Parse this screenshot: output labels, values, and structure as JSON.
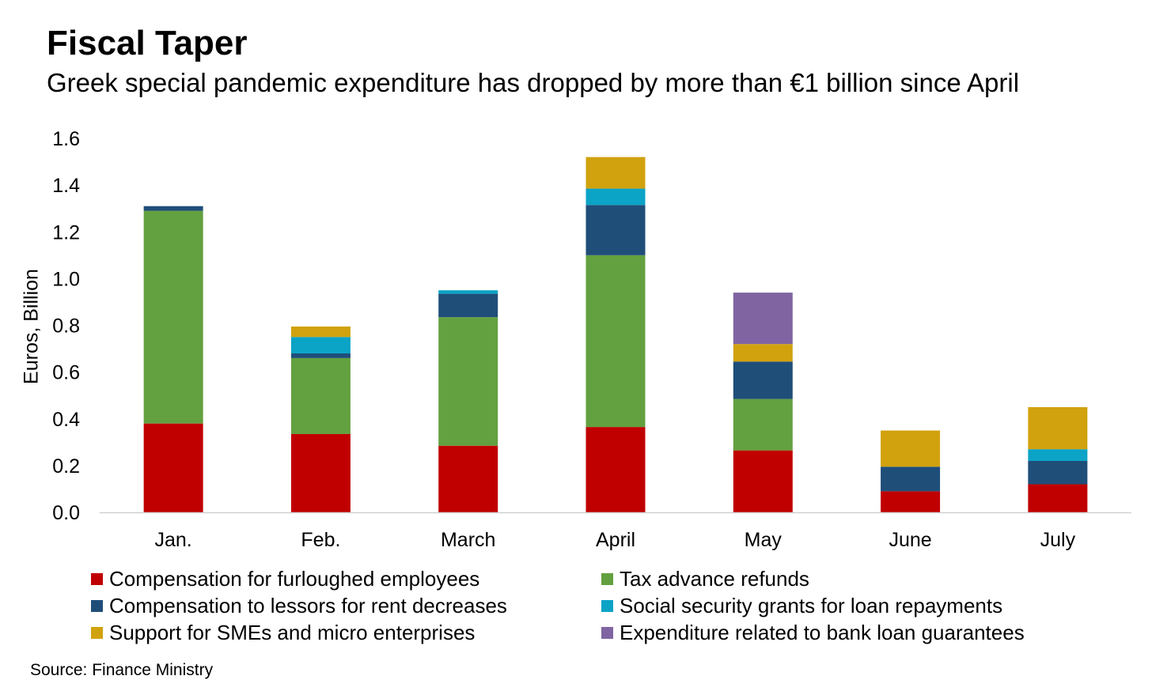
{
  "title": "Fiscal Taper",
  "subtitle": "Greek special pandemic expenditure has dropped by more than €1 billion since April",
  "source": "Source: Finance Ministry",
  "chart_data": {
    "type": "bar",
    "stacked": true,
    "categories": [
      "Jan.",
      "Feb.",
      "March",
      "April",
      "May",
      "June",
      "July"
    ],
    "ylabel": "Euros, Billion",
    "xlabel": "",
    "ylim": [
      0,
      1.6
    ],
    "yticks": [
      "0.0",
      "0.2",
      "0.4",
      "0.6",
      "0.8",
      "1.0",
      "1.2",
      "1.4",
      "1.6"
    ],
    "grid": false,
    "legend_position": "bottom",
    "series": [
      {
        "name": "Compensation for furloughed employees",
        "color": "#C00000",
        "values": [
          0.38,
          0.335,
          0.285,
          0.365,
          0.265,
          0.09,
          0.12
        ]
      },
      {
        "name": "Tax advance refunds",
        "color": "#63A03F",
        "values": [
          0.91,
          0.325,
          0.55,
          0.735,
          0.22,
          0,
          0
        ]
      },
      {
        "name": "Compensation to lessors for rent decreases",
        "color": "#1F4E79",
        "values": [
          0.02,
          0.02,
          0.1,
          0.215,
          0.16,
          0.105,
          0.1
        ]
      },
      {
        "name": "Social security grants for loan repayments",
        "color": "#0BA3C6",
        "values": [
          0,
          0.07,
          0.015,
          0.07,
          0,
          0,
          0.05
        ]
      },
      {
        "name": "Support for SMEs and micro enterprises",
        "color": "#D1A20E",
        "values": [
          0,
          0.045,
          0,
          0.135,
          0.075,
          0.155,
          0.18
        ]
      },
      {
        "name": "Expenditure related to bank loan guarantees",
        "color": "#8064A2",
        "values": [
          0,
          0,
          0,
          0,
          0.22,
          0,
          0
        ]
      }
    ]
  }
}
